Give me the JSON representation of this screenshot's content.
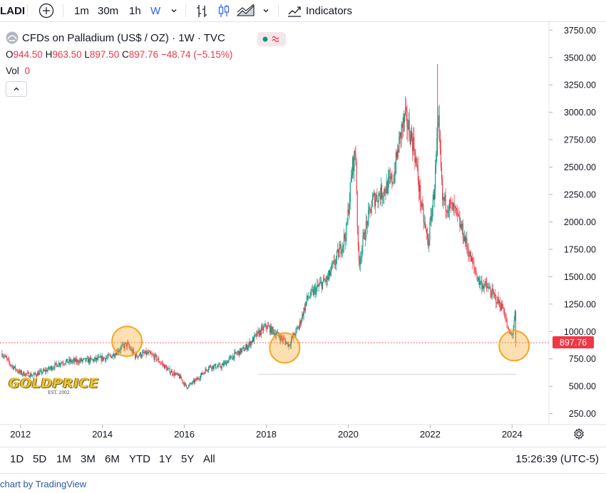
{
  "toolbar": {
    "symbol": "LADI",
    "intervals": [
      "1m",
      "30m",
      "1h",
      "W"
    ],
    "active_interval": "W",
    "indicators_label": "Indicators",
    "icons": [
      "add-symbol-icon",
      "chevron-down-icon",
      "bar-style-icon",
      "candle-style-icon",
      "area-style-icon",
      "chevron-down-icon",
      "indicators-icon"
    ]
  },
  "legend": {
    "title": "CFDs on Palladium (US$ / OZ) · 1W · TVC",
    "open_label": "O",
    "open": "944.50",
    "high_label": "H",
    "high": "963.50",
    "low_label": "L",
    "low": "897.50",
    "close_label": "C",
    "close": "897.76",
    "change": "−48.74 (−5.15%)",
    "vol_label": "Vol",
    "vol": "0"
  },
  "price_tag": "897.76",
  "logo": {
    "main": "GOLDPRICE",
    "sub": "EST. 2002"
  },
  "range_buttons": [
    "1D",
    "5D",
    "1M",
    "3M",
    "6M",
    "YTD",
    "1Y",
    "5Y",
    "All"
  ],
  "clock": "15:26:39 (UTC-5)",
  "credit": "chart by TradingView",
  "colors": {
    "up": "#089981",
    "down": "#f23645",
    "highlight": "#f5a623",
    "price_line": "#f23645"
  },
  "chart_data": {
    "type": "candlestick",
    "y_ticks": [
      "3750.00",
      "3500.00",
      "3250.00",
      "3000.00",
      "2750.00",
      "2500.00",
      "2250.00",
      "2000.00",
      "1750.00",
      "1500.00",
      "1250.00",
      "1000.00",
      "750.00",
      "500.00",
      "250.00"
    ],
    "y_tick_values": [
      3750,
      3500,
      3250,
      3000,
      2750,
      2500,
      2250,
      2000,
      1750,
      1500,
      1250,
      1000,
      750,
      500,
      250
    ],
    "x_ticks": [
      "2012",
      "2014",
      "2016",
      "2018",
      "2020",
      "2022",
      "2024"
    ],
    "x_tick_values": [
      2012,
      2014,
      2016,
      2018,
      2020,
      2022,
      2024
    ],
    "xlim": [
      2011.5,
      2024.9
    ],
    "ylim": [
      150,
      3830
    ],
    "current_price": 897.76,
    "reference_level": 610,
    "x_range": [
      2011.55,
      2024.1
    ],
    "highlights": [
      {
        "x": 2014.6,
        "y": 910
      },
      {
        "x": 2018.45,
        "y": 850
      },
      {
        "x": 2024.05,
        "y": 870
      }
    ],
    "path": [
      [
        2011.55,
        800
      ],
      [
        2011.75,
        700
      ],
      [
        2012.0,
        620
      ],
      [
        2012.3,
        600
      ],
      [
        2012.6,
        640
      ],
      [
        2013.0,
        720
      ],
      [
        2013.4,
        730
      ],
      [
        2013.8,
        740
      ],
      [
        2014.2,
        770
      ],
      [
        2014.45,
        850
      ],
      [
        2014.6,
        880
      ],
      [
        2014.8,
        780
      ],
      [
        2015.1,
        800
      ],
      [
        2015.3,
        760
      ],
      [
        2015.6,
        650
      ],
      [
        2015.9,
        580
      ],
      [
        2016.05,
        490
      ],
      [
        2016.3,
        560
      ],
      [
        2016.6,
        680
      ],
      [
        2016.9,
        680
      ],
      [
        2017.2,
        780
      ],
      [
        2017.5,
        850
      ],
      [
        2017.8,
        980
      ],
      [
        2018.0,
        1050
      ],
      [
        2018.3,
        960
      ],
      [
        2018.55,
        880
      ],
      [
        2018.8,
        1050
      ],
      [
        2019.0,
        1300
      ],
      [
        2019.3,
        1420
      ],
      [
        2019.5,
        1480
      ],
      [
        2019.75,
        1700
      ],
      [
        2019.95,
        1900
      ],
      [
        2020.1,
        2500
      ],
      [
        2020.18,
        2650
      ],
      [
        2020.25,
        1600
      ],
      [
        2020.4,
        1900
      ],
      [
        2020.6,
        2200
      ],
      [
        2020.9,
        2300
      ],
      [
        2021.1,
        2400
      ],
      [
        2021.3,
        2850
      ],
      [
        2021.4,
        2950
      ],
      [
        2021.6,
        2700
      ],
      [
        2021.8,
        2100
      ],
      [
        2021.95,
        1800
      ],
      [
        2022.1,
        2300
      ],
      [
        2022.2,
        2900
      ],
      [
        2022.3,
        2200
      ],
      [
        2022.6,
        2100
      ],
      [
        2022.8,
        1900
      ],
      [
        2023.0,
        1650
      ],
      [
        2023.2,
        1450
      ],
      [
        2023.4,
        1400
      ],
      [
        2023.6,
        1300
      ],
      [
        2023.8,
        1200
      ],
      [
        2023.9,
        1000
      ],
      [
        2024.0,
        960
      ],
      [
        2024.08,
        1180
      ],
      [
        2024.12,
        898
      ]
    ]
  }
}
